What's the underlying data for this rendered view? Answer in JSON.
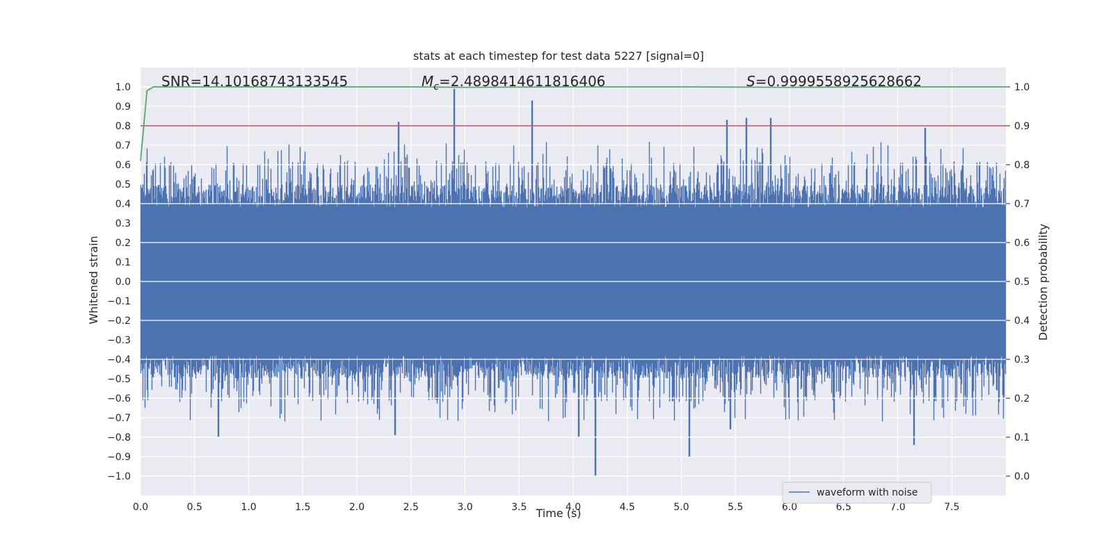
{
  "chart_data": {
    "type": "line",
    "title": "stats at each timestep for test data 5227 [signal=0]",
    "xlabel": "Time (s)",
    "ylabel": "Whitened strain",
    "y2label": "Detection probability",
    "xlim": [
      0.0,
      8.0
    ],
    "ylim": [
      -1.1,
      1.1
    ],
    "y2lim": [
      -0.05,
      1.05
    ],
    "xticks": [
      "0.0",
      "0.5",
      "1.0",
      "1.5",
      "2.0",
      "2.5",
      "3.0",
      "3.5",
      "4.0",
      "4.5",
      "5.0",
      "5.5",
      "6.0",
      "6.5",
      "7.0",
      "7.5"
    ],
    "yticks": [
      "1.0",
      "0.9",
      "0.8",
      "0.7",
      "0.6",
      "0.5",
      "0.4",
      "0.3",
      "0.2",
      "0.1",
      "0.0",
      "−0.1",
      "−0.2",
      "−0.3",
      "−0.4",
      "−0.5",
      "−0.6",
      "−0.7",
      "−0.8",
      "−0.9",
      "−1.0"
    ],
    "y2ticks": [
      "1.0",
      "0.9",
      "0.8",
      "0.7",
      "0.6",
      "0.5",
      "0.4",
      "0.3",
      "0.2",
      "0.1",
      "0.0"
    ],
    "annotations": {
      "snr": "SNR=14.10168743133545",
      "mc_symbol": "M",
      "mc_sub": "c",
      "mc_value": "=2.4898414611816406",
      "s_symbol": "S",
      "s_value": "=0.9999558925628662"
    },
    "threshold": {
      "value": 0.9,
      "color": "#c44e52"
    },
    "probability_series": {
      "name": "detection probability",
      "color": "#55a868",
      "x": [
        0.0,
        0.03,
        0.06,
        0.12,
        0.2,
        1.0,
        2.0,
        2.5,
        3.0,
        4.0,
        5.0,
        6.0,
        7.0,
        8.0
      ],
      "y": [
        0.81,
        0.9,
        0.99,
        1.0,
        1.0,
        1.0,
        1.0,
        1.0,
        0.999,
        1.0,
        1.0,
        0.999,
        1.0,
        1.0
      ]
    },
    "waveform": {
      "name": "waveform with noise",
      "color": "#4c72b0",
      "sample_rate_hz": 2048,
      "duration_s": 8.0,
      "core_amplitude": 0.38,
      "peaks": [
        {
          "t": 2.9,
          "v": 0.99
        },
        {
          "t": 3.62,
          "v": 0.93
        },
        {
          "t": 5.6,
          "v": 0.84
        },
        {
          "t": 5.42,
          "v": 0.83
        },
        {
          "t": 5.82,
          "v": 0.84
        },
        {
          "t": 2.38,
          "v": 0.82
        },
        {
          "t": 7.25,
          "v": 0.79
        },
        {
          "t": 4.2,
          "v": -1.0
        },
        {
          "t": 5.07,
          "v": -0.9
        },
        {
          "t": 7.15,
          "v": -0.84
        },
        {
          "t": 0.72,
          "v": -0.8
        },
        {
          "t": 2.35,
          "v": -0.79
        },
        {
          "t": 4.05,
          "v": -0.8
        },
        {
          "t": 5.45,
          "v": -0.76
        }
      ]
    },
    "legend": {
      "label": "waveform with noise",
      "placement": "lower-right"
    }
  }
}
